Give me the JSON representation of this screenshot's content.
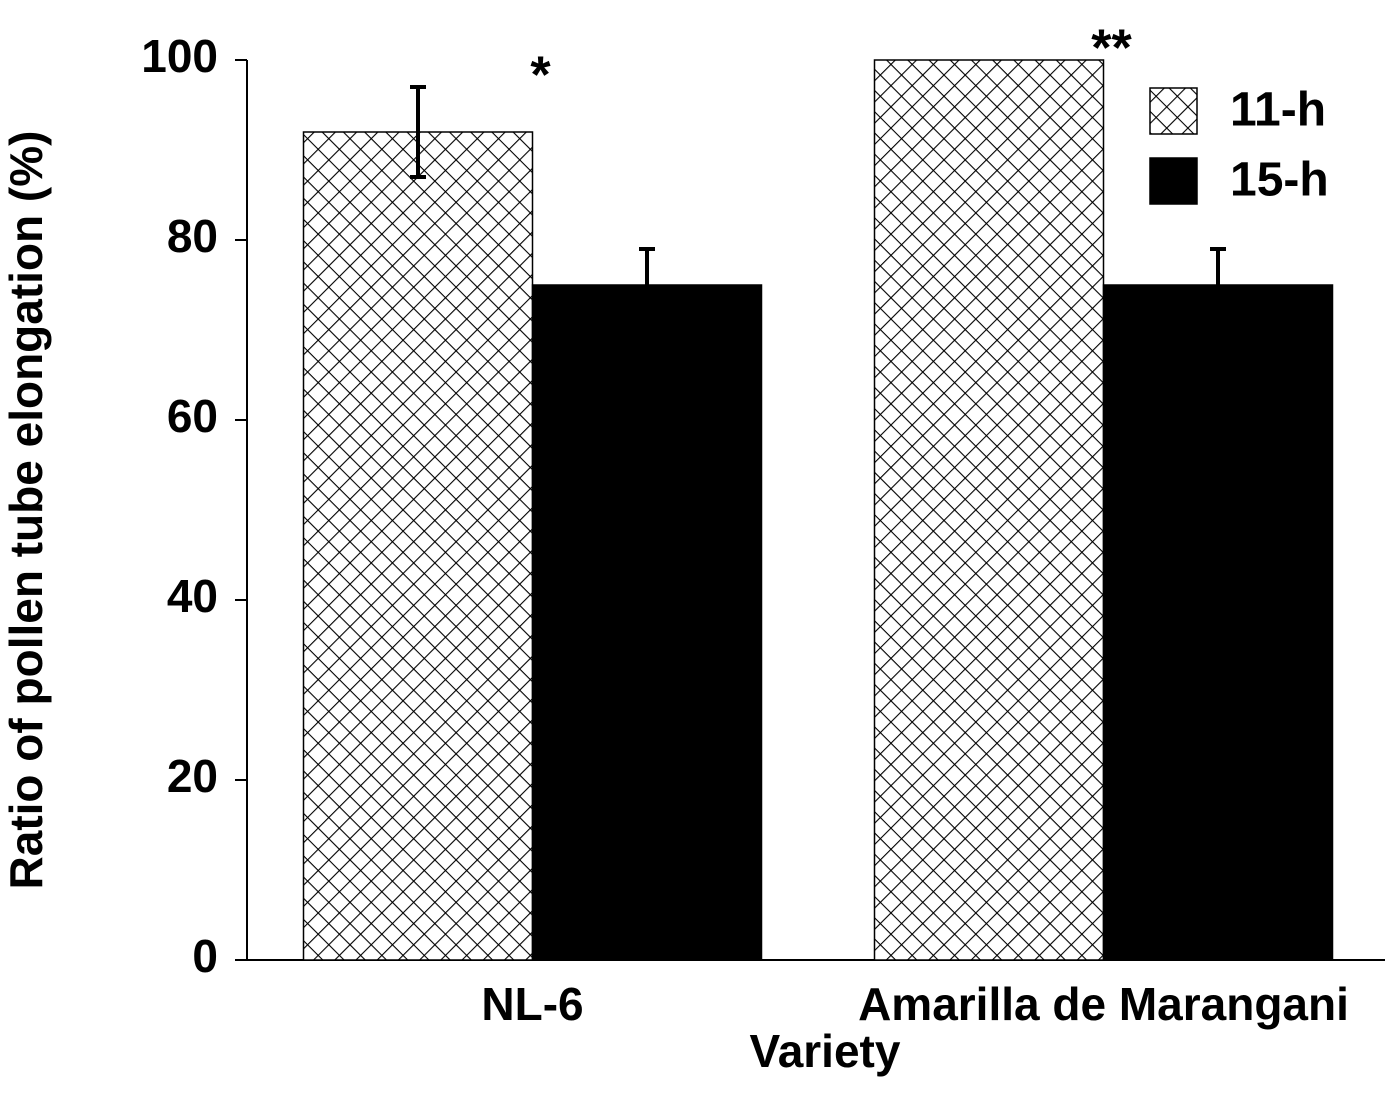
{
  "chart_data": {
    "type": "bar",
    "y_label": "Ratio of pollen tube elongation (%)",
    "x_label": "Variety",
    "categories": [
      "NL-6",
      "Amarilla de Marangani"
    ],
    "series": [
      {
        "name": "11-h",
        "color": "#000000",
        "pattern": "crosshatch",
        "values": [
          92,
          100
        ],
        "errors": [
          5,
          null
        ]
      },
      {
        "name": "15-h",
        "color": "#000000",
        "values": [
          75,
          75
        ],
        "errors": [
          4,
          4
        ]
      }
    ],
    "annotations": [
      "*",
      "**"
    ],
    "ylim": [
      0,
      100
    ],
    "yticks": [
      0,
      20,
      40,
      60,
      80,
      100
    ],
    "grid": false,
    "legend": "upper right"
  }
}
